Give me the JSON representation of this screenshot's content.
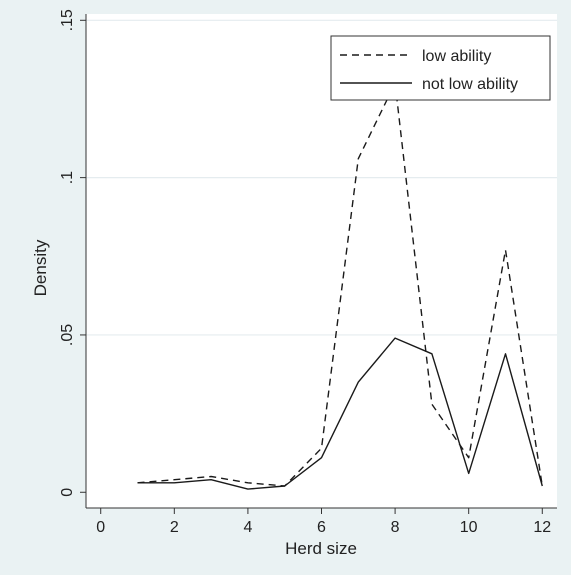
{
  "chart_data": {
    "type": "line",
    "title": "",
    "xlabel": "Herd size",
    "ylabel": "Density",
    "xlim": [
      -0.4,
      12.4
    ],
    "ylim": [
      -0.005,
      0.152
    ],
    "xticks": [
      0,
      2,
      4,
      6,
      8,
      10,
      12
    ],
    "xtick_labels": [
      "0",
      "2",
      "4",
      "6",
      "8",
      "10",
      "12"
    ],
    "yticks": [
      0,
      0.05,
      0.1,
      0.15
    ],
    "ytick_labels": [
      "0",
      ".05",
      ".1",
      ".15"
    ],
    "grid": "horizontal",
    "legend_position": "top-right",
    "series": [
      {
        "name": "low ability",
        "style": "dashed",
        "x": [
          1,
          2,
          3,
          4,
          5,
          6,
          7,
          8,
          9,
          10,
          11,
          12
        ],
        "y": [
          0.003,
          0.004,
          0.005,
          0.003,
          0.002,
          0.014,
          0.106,
          0.13,
          0.028,
          0.011,
          0.077,
          0.002
        ]
      },
      {
        "name": "not low ability",
        "style": "solid",
        "x": [
          1,
          2,
          3,
          4,
          5,
          6,
          7,
          8,
          9,
          10,
          11,
          12
        ],
        "y": [
          0.003,
          0.003,
          0.004,
          0.001,
          0.002,
          0.011,
          0.035,
          0.049,
          0.044,
          0.006,
          0.044,
          0.002
        ]
      }
    ]
  },
  "colors": {
    "background": "#eaf2f3",
    "plot_area": "#ffffff",
    "gridline": "#e5ecef",
    "lines": "#1a1a1a"
  }
}
